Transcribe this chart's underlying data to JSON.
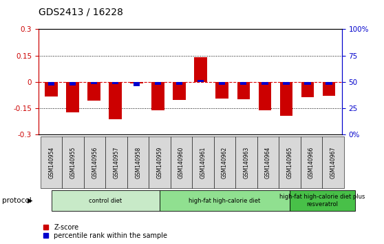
{
  "title": "GDS2413 / 16228",
  "samples": [
    "GSM140954",
    "GSM140955",
    "GSM140956",
    "GSM140957",
    "GSM140958",
    "GSM140959",
    "GSM140960",
    "GSM140961",
    "GSM140962",
    "GSM140963",
    "GSM140964",
    "GSM140965",
    "GSM140966",
    "GSM140967"
  ],
  "zscore": [
    -0.085,
    -0.175,
    -0.11,
    -0.215,
    -0.01,
    -0.165,
    -0.105,
    0.14,
    -0.095,
    -0.1,
    -0.165,
    -0.195,
    -0.09,
    -0.08
  ],
  "pct_rank": [
    -0.02,
    -0.02,
    -0.015,
    -0.015,
    -0.025,
    -0.018,
    -0.018,
    0.01,
    -0.018,
    -0.018,
    -0.018,
    -0.018,
    -0.018,
    -0.018
  ],
  "groups": [
    {
      "label": "control diet",
      "start": 0,
      "end": 5,
      "color": "#c8eac8"
    },
    {
      "label": "high-fat high-calorie diet",
      "start": 5,
      "end": 11,
      "color": "#90e090"
    },
    {
      "label": "high-fat high-calorie diet plus\nresveratrol",
      "start": 11,
      "end": 14,
      "color": "#48c048"
    }
  ],
  "ylim": [
    -0.3,
    0.3
  ],
  "yticks": [
    -0.3,
    -0.15,
    0.0,
    0.15,
    0.3
  ],
  "ytick_labels_left": [
    "-0.3",
    "-0.15",
    "0",
    "0.15",
    "0.3"
  ],
  "ytick_labels_right": [
    "0%",
    "25",
    "50",
    "75",
    "100%"
  ],
  "bar_color_red": "#cc0000",
  "bar_color_blue": "#0000cc",
  "hline_color": "#dd0000",
  "dotted_color": "#000000",
  "bg_color": "#ffffff",
  "sample_bg": "#d8d8d8",
  "left_label_color": "#cc0000",
  "right_label_color": "#0000cc",
  "bar_width": 0.6
}
